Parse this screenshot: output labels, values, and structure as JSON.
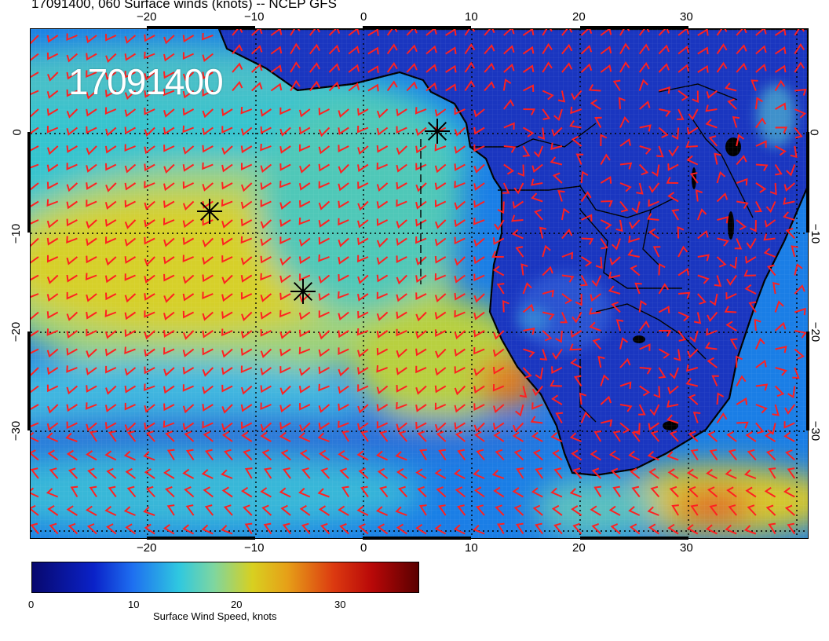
{
  "title": "17091400, 060 Surface winds (knots) -- NCEP GFS",
  "date_stamp": "17091400",
  "map": {
    "top_lon_labels": [
      "−20",
      "−10",
      "0",
      "10",
      "20",
      "30"
    ],
    "bottom_lon_labels": [
      "−20",
      "−10",
      "0",
      "10",
      "20",
      "30"
    ],
    "left_lat_labels": [
      "0",
      "−10",
      "−20",
      "−30"
    ],
    "right_lat_labels": [
      "0",
      "−10",
      "−20",
      "−30"
    ],
    "barb_color": "#ff2020",
    "coastline_color": "#000000",
    "grid_style": "dotted",
    "markers": [
      "asterisk",
      "asterisk",
      "asterisk"
    ]
  },
  "colorbar": {
    "title": "Surface Wind Speed, knots",
    "tick_labels": [
      "0",
      "10",
      "20",
      "30"
    ]
  }
}
